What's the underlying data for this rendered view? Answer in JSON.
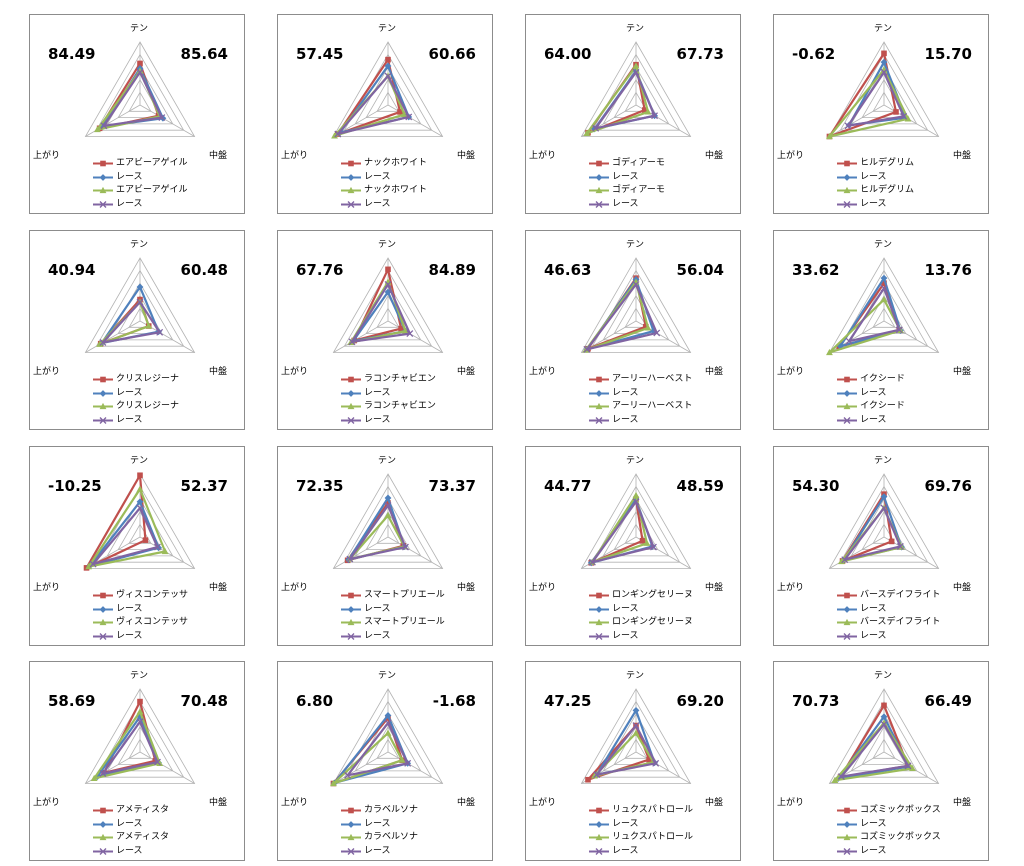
{
  "axis_labels": [
    "テン",
    "中盤",
    "上がり"
  ],
  "colors": {
    "horse_red": "#c0504d",
    "race_blue": "#4f81bd",
    "horse_green": "#9bbb59",
    "race_purple": "#8064a2",
    "grid": "#b3b3b3"
  },
  "panels": [
    {
      "score_left": "84.49",
      "score_right": "85.64",
      "legend": [
        "エアビーアゲイル",
        "レース",
        "エアビーアゲイル",
        "レース"
      ],
      "chart_data": {
        "type": "radar",
        "axes": [
          "テン",
          "中盤",
          "上がり"
        ],
        "scale": [
          0,
          5
        ],
        "series": [
          {
            "name": "エアビーアゲイル",
            "values": [
              3.3,
              1.7,
              3.7
            ]
          },
          {
            "name": "レース",
            "values": [
              2.9,
              2.1,
              3.4
            ]
          },
          {
            "name": "エアビーアゲイル",
            "values": [
              2.7,
              1.8,
              3.9
            ]
          },
          {
            "name": "レース",
            "values": [
              2.6,
              2.0,
              3.3
            ]
          }
        ]
      }
    },
    {
      "score_left": "57.45",
      "score_right": "60.66",
      "legend": [
        "ナックホワイト",
        "レース",
        "ナックホワイト",
        "レース"
      ],
      "chart_data": {
        "type": "radar",
        "axes": [
          "テン",
          "中盤",
          "上がり"
        ],
        "scale": [
          0,
          5
        ],
        "series": [
          {
            "name": "ナックホワイト",
            "values": [
              3.6,
              1.1,
              4.6
            ]
          },
          {
            "name": "レース",
            "values": [
              3.1,
              1.9,
              4.4
            ]
          },
          {
            "name": "ナックホワイト",
            "values": [
              2.3,
              1.5,
              4.9
            ]
          },
          {
            "name": "レース",
            "values": [
              2.3,
              1.9,
              4.6
            ]
          }
        ]
      }
    },
    {
      "score_left": "64.00",
      "score_right": "67.73",
      "legend": [
        "ゴディアーモ",
        "レース",
        "ゴディアーモ",
        "レース"
      ],
      "chart_data": {
        "type": "radar",
        "axes": [
          "テン",
          "中盤",
          "上がり"
        ],
        "scale": [
          0,
          5
        ],
        "series": [
          {
            "name": "ゴディアーモ",
            "values": [
              3.2,
              0.8,
              4.4
            ]
          },
          {
            "name": "レース",
            "values": [
              2.7,
              1.7,
              3.8
            ]
          },
          {
            "name": "ゴディアーモ",
            "values": [
              3.1,
              1.1,
              4.5
            ]
          },
          {
            "name": "レース",
            "values": [
              2.6,
              1.7,
              3.7
            ]
          }
        ]
      }
    },
    {
      "score_left": "-0.62",
      "score_right": "15.70",
      "legend": [
        "ヒルデグリム",
        "レース",
        "ヒルデグリム",
        "レース"
      ],
      "chart_data": {
        "type": "radar",
        "axes": [
          "テン",
          "中盤",
          "上がり"
        ],
        "scale": [
          0,
          5
        ],
        "series": [
          {
            "name": "ヒルデグリム",
            "values": [
              4.1,
              1.1,
              5.0
            ]
          },
          {
            "name": "レース",
            "values": [
              3.4,
              2.0,
              3.2
            ]
          },
          {
            "name": "ヒルデグリム",
            "values": [
              2.8,
              2.2,
              5.0
            ]
          },
          {
            "name": "レース",
            "values": [
              2.6,
              1.8,
              3.3
            ]
          }
        ]
      }
    },
    {
      "score_left": "40.94",
      "score_right": "60.48",
      "legend": [
        "クリスレジーナ",
        "レース",
        "クリスレジーナ",
        "レース"
      ],
      "chart_data": {
        "type": "radar",
        "axes": [
          "テン",
          "中盤",
          "上がり"
        ],
        "scale": [
          0,
          5
        ],
        "series": [
          {
            "name": "クリスレジーナ",
            "values": [
              1.7,
              0.8,
              3.6
            ]
          },
          {
            "name": "レース",
            "values": [
              2.7,
              1.7,
              3.5
            ]
          },
          {
            "name": "クリスレジーナ",
            "values": [
              1.5,
              0.8,
              3.7
            ]
          },
          {
            "name": "レース",
            "values": [
              1.5,
              1.8,
              3.4
            ]
          }
        ]
      }
    },
    {
      "score_left": "67.76",
      "score_right": "84.89",
      "legend": [
        "ラコンチャビエン",
        "レース",
        "ラコンチャビエン",
        "レース"
      ],
      "chart_data": {
        "type": "radar",
        "axes": [
          "テン",
          "中盤",
          "上がり"
        ],
        "scale": [
          0,
          5
        ],
        "series": [
          {
            "name": "ラコンチャビエン",
            "values": [
              4.1,
              1.2,
              3.1
            ]
          },
          {
            "name": "レース",
            "values": [
              2.3,
              1.6,
              3.2
            ]
          },
          {
            "name": "ラコンチャビエン",
            "values": [
              3.1,
              1.6,
              3.4
            ]
          },
          {
            "name": "レース",
            "values": [
              2.9,
              2.0,
              3.3
            ]
          }
        ]
      }
    },
    {
      "score_left": "46.63",
      "score_right": "56.04",
      "legend": [
        "アーリーハーベスト",
        "レース",
        "アーリーハーベスト",
        "レース"
      ],
      "chart_data": {
        "type": "radar",
        "axes": [
          "テン",
          "中盤",
          "上がり"
        ],
        "scale": [
          0,
          5
        ],
        "series": [
          {
            "name": "アーリーハーベスト",
            "values": [
              3.4,
              0.9,
              4.4
            ]
          },
          {
            "name": "レース",
            "values": [
              3.3,
              1.6,
              4.5
            ]
          },
          {
            "name": "アーリーハーベスト",
            "values": [
              3.1,
              1.1,
              4.6
            ]
          },
          {
            "name": "レース",
            "values": [
              2.9,
              1.9,
              4.5
            ]
          }
        ]
      }
    },
    {
      "score_left": "33.62",
      "score_right": "13.76",
      "legend": [
        "イクシード",
        "レース",
        "イクシード",
        "レース"
      ],
      "chart_data": {
        "type": "radar",
        "axes": [
          "テン",
          "中盤",
          "上がり"
        ],
        "scale": [
          0,
          5
        ],
        "series": [
          {
            "name": "イクシード",
            "values": [
              3.0,
              1.4,
              4.1
            ]
          },
          {
            "name": "レース",
            "values": [
              3.4,
              1.5,
              4.0
            ]
          },
          {
            "name": "イクシード",
            "values": [
              1.7,
              1.5,
              5.0
            ]
          },
          {
            "name": "レース",
            "values": [
              2.6,
              1.4,
              3.2
            ]
          }
        ]
      }
    },
    {
      "score_left": "-10.25",
      "score_right": "52.37",
      "legend": [
        "ヴィスコンテッサ",
        "レース",
        "ヴィスコンテッサ",
        "レース"
      ],
      "chart_data": {
        "type": "radar",
        "axes": [
          "テン",
          "中盤",
          "上がり"
        ],
        "scale": [
          0,
          5
        ],
        "series": [
          {
            "name": "ヴィスコンテッサ",
            "values": [
              4.9,
              0.5,
              4.9
            ]
          },
          {
            "name": "レース",
            "values": [
              2.8,
              1.7,
              4.6
            ]
          },
          {
            "name": "ヴィスコンテッサ",
            "values": [
              3.8,
              2.3,
              4.7
            ]
          },
          {
            "name": "レース",
            "values": [
              2.3,
              1.6,
              4.3
            ]
          }
        ]
      }
    },
    {
      "score_left": "72.35",
      "score_right": "73.37",
      "legend": [
        "スマートプリエール",
        "レース",
        "スマートプリエール",
        "レース"
      ],
      "chart_data": {
        "type": "radar",
        "axes": [
          "テン",
          "中盤",
          "上がり"
        ],
        "scale": [
          0,
          5
        ],
        "series": [
          {
            "name": "スマートプリエール",
            "values": [
              2.7,
              1.4,
              3.7
            ]
          },
          {
            "name": "レース",
            "values": [
              3.1,
              1.5,
              3.6
            ]
          },
          {
            "name": "スマートプリエール",
            "values": [
              1.7,
              1.5,
              3.5
            ]
          },
          {
            "name": "レース",
            "values": [
              2.5,
              1.6,
              3.5
            ]
          }
        ]
      }
    },
    {
      "score_left": "44.77",
      "score_right": "48.59",
      "legend": [
        "ロンギングセリーヌ",
        "レース",
        "ロンギングセリーヌ",
        "レース"
      ],
      "chart_data": {
        "type": "radar",
        "axes": [
          "テン",
          "中盤",
          "上がり"
        ],
        "scale": [
          0,
          5
        ],
        "series": [
          {
            "name": "ロンギングセリーヌ",
            "values": [
              3.0,
              0.6,
              4.1
            ]
          },
          {
            "name": "レース",
            "values": [
              3.0,
              1.5,
              4.1
            ]
          },
          {
            "name": "ロンギングセリーヌ",
            "values": [
              3.3,
              1.0,
              4.0
            ]
          },
          {
            "name": "レース",
            "values": [
              2.8,
              1.6,
              4.0
            ]
          }
        ]
      }
    },
    {
      "score_left": "54.30",
      "score_right": "69.76",
      "legend": [
        "バースデイフライト",
        "レース",
        "バースデイフライト",
        "レース"
      ],
      "chart_data": {
        "type": "radar",
        "axes": [
          "テン",
          "中盤",
          "上がり"
        ],
        "scale": [
          0,
          5
        ],
        "series": [
          {
            "name": "バースデイフライト",
            "values": [
              3.4,
              0.7,
              3.8
            ]
          },
          {
            "name": "レース",
            "values": [
              3.2,
              1.6,
              3.7
            ]
          },
          {
            "name": "バースデイフライト",
            "values": [
              2.3,
              1.6,
              3.9
            ]
          },
          {
            "name": "レース",
            "values": [
              2.3,
              1.5,
              3.6
            ]
          }
        ]
      }
    },
    {
      "score_left": "58.69",
      "score_right": "70.48",
      "legend": [
        "アメティスタ",
        "レース",
        "アメティスタ",
        "レース"
      ],
      "chart_data": {
        "type": "radar",
        "axes": [
          "テン",
          "中盤",
          "上がり"
        ],
        "scale": [
          0,
          5
        ],
        "series": [
          {
            "name": "アメティスタ",
            "values": [
              4.0,
              1.4,
              3.3
            ]
          },
          {
            "name": "レース",
            "values": [
              2.8,
              1.7,
              3.9
            ]
          },
          {
            "name": "アメティスタ",
            "values": [
              3.2,
              1.8,
              4.2
            ]
          },
          {
            "name": "レース",
            "values": [
              2.4,
              1.6,
              3.4
            ]
          }
        ]
      }
    },
    {
      "score_left": "6.80",
      "score_right": "-1.68",
      "legend": [
        "カラベルソナ",
        "レース",
        "カラベルソナ",
        "レース"
      ],
      "chart_data": {
        "type": "radar",
        "axes": [
          "テン",
          "中盤",
          "上がり"
        ],
        "scale": [
          0,
          5
        ],
        "series": [
          {
            "name": "カラベルソナ",
            "values": [
              2.7,
              1.3,
              5.0
            ]
          },
          {
            "name": "レース",
            "values": [
              2.9,
              1.8,
              4.9
            ]
          },
          {
            "name": "カラベルソナ",
            "values": [
              1.5,
              1.3,
              5.0
            ]
          },
          {
            "name": "レース",
            "values": [
              2.3,
              1.8,
              3.7
            ]
          }
        ]
      }
    },
    {
      "score_left": "47.25",
      "score_right": "69.20",
      "legend": [
        "リュクスパトロール",
        "レース",
        "リュクスパトロール",
        "レース"
      ],
      "chart_data": {
        "type": "radar",
        "axes": [
          "テン",
          "中盤",
          "上がり"
        ],
        "scale": [
          0,
          5
        ],
        "series": [
          {
            "name": "リュクスパトロール",
            "values": [
              2.1,
              1.2,
              4.4
            ]
          },
          {
            "name": "レース",
            "values": [
              3.3,
              1.7,
              3.6
            ]
          },
          {
            "name": "リュクスパトロール",
            "values": [
              1.5,
              1.6,
              3.8
            ]
          },
          {
            "name": "レース",
            "values": [
              2.1,
              1.8,
              3.6
            ]
          }
        ]
      }
    },
    {
      "score_left": "70.73",
      "score_right": "66.49",
      "legend": [
        "コズミックボックス",
        "レース",
        "コズミックボックス",
        "レース"
      ],
      "chart_data": {
        "type": "radar",
        "axes": [
          "テン",
          "中盤",
          "上がり"
        ],
        "scale": [
          0,
          5
        ],
        "series": [
          {
            "name": "コズミックボックス",
            "values": [
              3.7,
              2.2,
              4.0
            ]
          },
          {
            "name": "レース",
            "values": [
              2.8,
              2.3,
              4.2
            ]
          },
          {
            "name": "コズミックボックス",
            "values": [
              2.3,
              2.6,
              4.5
            ]
          },
          {
            "name": "レース",
            "values": [
              2.2,
              2.2,
              3.9
            ]
          }
        ]
      }
    }
  ]
}
